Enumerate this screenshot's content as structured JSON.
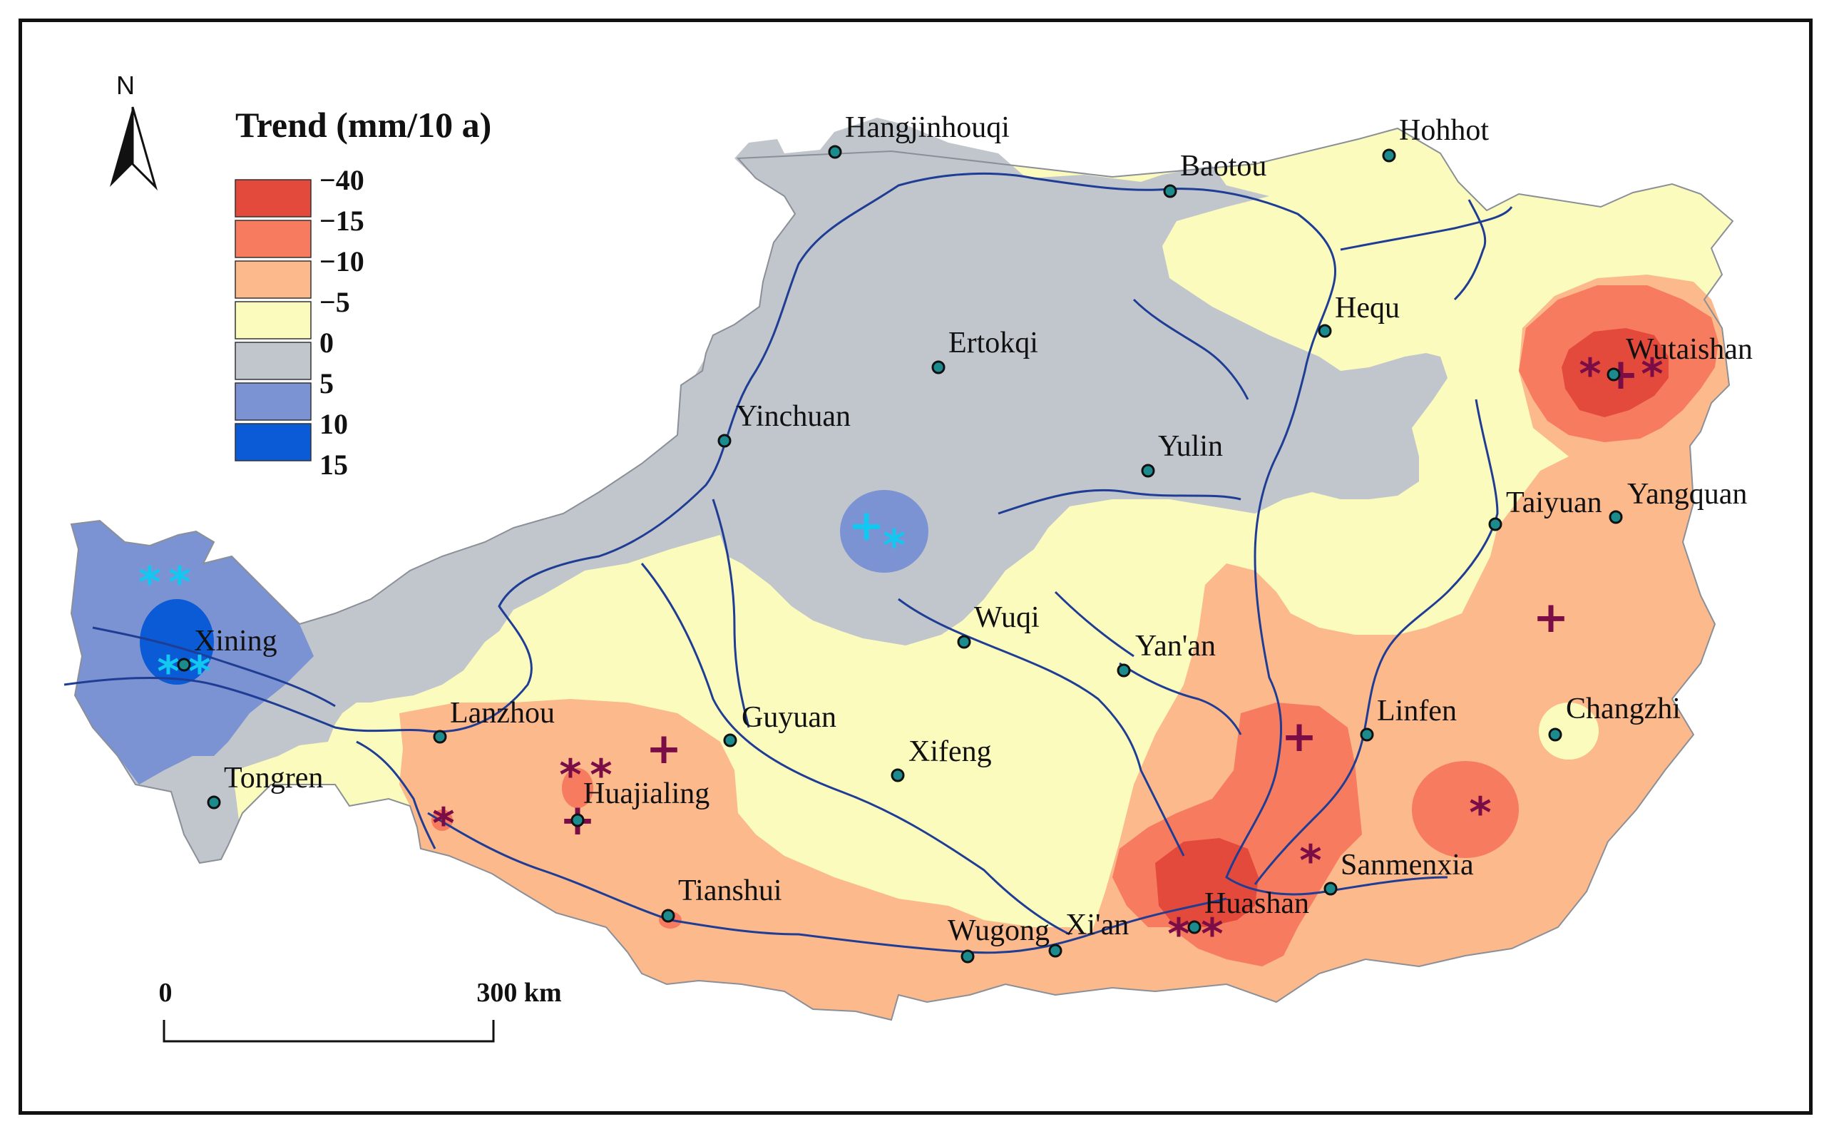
{
  "legend": {
    "title": "Trend (mm/10 a)",
    "labels": [
      "−40",
      "−15",
      "−10",
      "−5",
      "0",
      "5",
      "10",
      "15"
    ],
    "colors": [
      "#e44a3c",
      "#f77b5e",
      "#fbb98c",
      "#fbfbbe",
      "#c1c6cd",
      "#7b93d3",
      "#0b5bd6"
    ]
  },
  "north_arrow": {
    "label": "N"
  },
  "scale_bar": {
    "start_label": "0",
    "end_label": "300 km"
  },
  "colors": {
    "river": "#1f3d94",
    "station_fill": "#1c8b8e",
    "significance_marker": "#7a0d46",
    "positive_marker": "#12c8f0"
  },
  "stations": [
    {
      "id": "hangjinhouqi",
      "name": "Hangjinhouqi"
    },
    {
      "id": "baotou",
      "name": "Baotou"
    },
    {
      "id": "hohhot",
      "name": "Hohhot"
    },
    {
      "id": "hequ",
      "name": "Hequ"
    },
    {
      "id": "ertokqi",
      "name": "Ertokqi"
    },
    {
      "id": "wutaishan",
      "name": "Wutaishan"
    },
    {
      "id": "yinchuan",
      "name": "Yinchuan"
    },
    {
      "id": "yulin",
      "name": "Yulin"
    },
    {
      "id": "taiyuan",
      "name": "Taiyuan"
    },
    {
      "id": "yangquan",
      "name": "Yangquan"
    },
    {
      "id": "xining",
      "name": "Xining"
    },
    {
      "id": "wuqi",
      "name": "Wuqi"
    },
    {
      "id": "yanan",
      "name": "Yan'an"
    },
    {
      "id": "lanzhou",
      "name": "Lanzhou"
    },
    {
      "id": "guyuan",
      "name": "Guyuan"
    },
    {
      "id": "linfen",
      "name": "Linfen"
    },
    {
      "id": "changzhi",
      "name": "Changzhi"
    },
    {
      "id": "tongren",
      "name": "Tongren"
    },
    {
      "id": "xifeng",
      "name": "Xifeng"
    },
    {
      "id": "huajialing",
      "name": "Huajialing"
    },
    {
      "id": "sanmenxia",
      "name": "Sanmenxia"
    },
    {
      "id": "tianshui",
      "name": "Tianshui"
    },
    {
      "id": "huashan",
      "name": "Huashan"
    },
    {
      "id": "wugong",
      "name": "Wugong"
    },
    {
      "id": "xian",
      "name": "Xi'an"
    }
  ],
  "markers": [
    {
      "symbol": "+"
    },
    {
      "symbol": "+"
    },
    {
      "symbol": "+"
    },
    {
      "symbol": "+"
    },
    {
      "symbol": "*"
    },
    {
      "symbol": "*"
    },
    {
      "symbol": "*"
    },
    {
      "symbol": "*"
    },
    {
      "symbol": "*"
    },
    {
      "symbol": "*"
    },
    {
      "symbol": "*"
    },
    {
      "symbol": "*"
    },
    {
      "symbol": "*"
    },
    {
      "symbol": "*"
    },
    {
      "symbol": "+"
    },
    {
      "symbol": "+"
    },
    {
      "symbol": "*"
    },
    {
      "symbol": "*"
    },
    {
      "symbol": "*"
    },
    {
      "symbol": "*"
    }
  ]
}
